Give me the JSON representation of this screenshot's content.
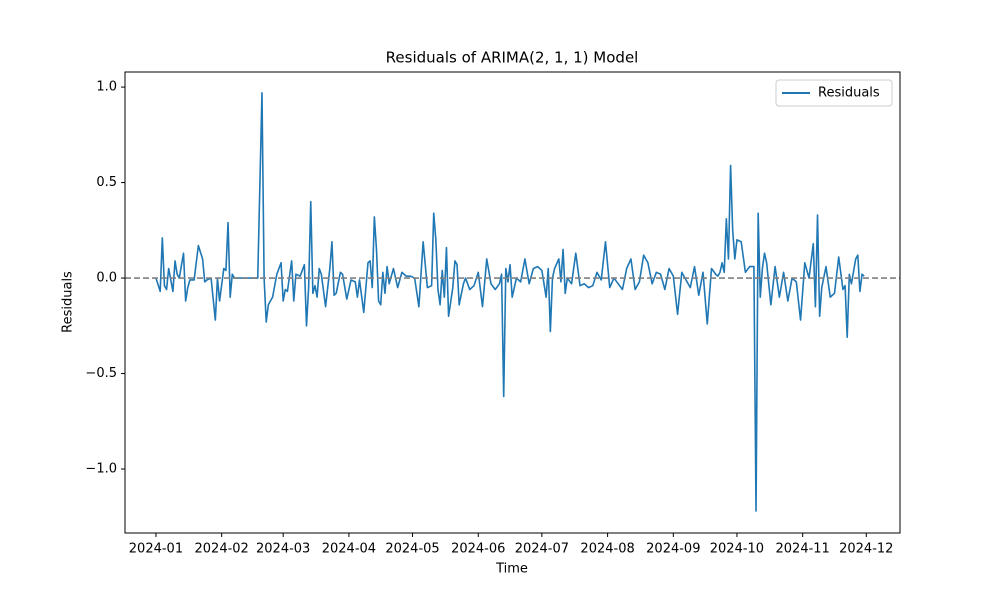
{
  "chart_data": {
    "type": "line",
    "title": "Residuals of ARIMA(2, 1, 1) Model",
    "xlabel": "Time",
    "ylabel": "Residuals",
    "x": [
      0,
      2,
      3,
      4,
      5,
      6,
      8,
      9,
      10,
      11,
      13,
      14,
      15,
      16,
      18,
      20,
      22,
      23,
      24,
      26,
      28,
      29,
      30,
      32,
      33,
      34,
      35,
      36,
      37,
      38,
      40,
      44,
      48,
      50,
      51,
      52,
      53,
      55,
      57,
      59,
      60,
      61,
      62,
      64,
      65,
      66,
      68,
      70,
      71,
      72,
      73,
      74,
      75,
      76,
      77,
      78,
      80,
      82,
      83,
      84,
      85,
      87,
      88,
      90,
      92,
      94,
      95,
      96,
      98,
      100,
      101,
      102,
      103,
      104,
      105,
      106,
      107,
      108,
      109,
      110,
      112,
      114,
      116,
      118,
      120,
      122,
      124,
      126,
      128,
      130,
      131,
      132,
      133,
      134,
      135,
      136,
      137,
      138,
      140,
      141,
      142,
      143,
      145,
      146,
      148,
      150,
      152,
      154,
      156,
      158,
      160,
      162,
      163,
      164,
      165,
      166,
      167,
      168,
      170,
      172,
      174,
      176,
      178,
      180,
      182,
      184,
      185,
      186,
      187,
      188,
      190,
      191,
      192,
      193,
      194,
      196,
      198,
      200,
      202,
      204,
      206,
      208,
      210,
      212,
      214,
      216,
      218,
      220,
      222,
      224,
      226,
      228,
      230,
      232,
      234,
      236,
      238,
      240,
      242,
      244,
      246,
      248,
      250,
      252,
      254,
      256,
      258,
      260,
      262,
      264,
      265,
      266,
      267,
      268,
      269,
      270,
      271,
      272,
      273,
      274,
      276,
      278,
      280,
      281,
      282,
      283,
      284,
      285,
      286,
      287,
      288,
      290,
      292,
      294,
      296,
      298,
      300,
      302,
      304,
      306,
      308,
      310,
      311,
      312,
      313,
      314,
      316,
      318,
      320,
      322,
      324,
      325,
      326,
      327,
      328,
      330,
      331,
      332,
      333,
      334
    ],
    "series": [
      {
        "name": "Residuals",
        "color": "#1f77b4",
        "values": [
          0.0,
          -0.07,
          0.21,
          -0.04,
          -0.06,
          0.05,
          -0.07,
          0.09,
          0.02,
          0.0,
          0.13,
          -0.12,
          -0.05,
          -0.01,
          -0.01,
          0.17,
          0.1,
          -0.02,
          -0.01,
          0.0,
          -0.22,
          0.0,
          -0.12,
          0.05,
          0.04,
          0.29,
          -0.1,
          0.02,
          0.0,
          0.0,
          0.0,
          0.0,
          0.0,
          0.97,
          0.0,
          -0.23,
          -0.14,
          -0.1,
          0.02,
          0.08,
          -0.12,
          -0.06,
          -0.07,
          0.09,
          -0.12,
          0.02,
          0.01,
          0.07,
          -0.25,
          -0.05,
          0.4,
          -0.08,
          -0.04,
          -0.1,
          0.05,
          0.02,
          -0.15,
          0.05,
          0.19,
          -0.09,
          -0.08,
          0.03,
          0.02,
          -0.11,
          -0.01,
          -0.02,
          -0.1,
          -0.01,
          -0.18,
          0.08,
          0.09,
          -0.05,
          0.32,
          0.15,
          -0.12,
          -0.14,
          0.03,
          -0.08,
          0.06,
          -0.03,
          0.05,
          -0.05,
          0.03,
          0.01,
          0.01,
          0.0,
          -0.15,
          0.19,
          -0.05,
          -0.04,
          0.34,
          0.2,
          -0.06,
          -0.14,
          0.04,
          -0.1,
          0.16,
          -0.2,
          -0.05,
          0.09,
          0.07,
          -0.14,
          -0.03,
          0.0,
          -0.06,
          -0.04,
          0.03,
          -0.15,
          0.1,
          -0.03,
          -0.06,
          -0.03,
          0.02,
          -0.62,
          0.05,
          -0.02,
          0.07,
          -0.1,
          0.0,
          -0.02,
          0.1,
          -0.03,
          0.05,
          0.06,
          0.04,
          -0.1,
          0.05,
          -0.28,
          0.0,
          0.05,
          0.1,
          -0.02,
          0.15,
          -0.08,
          0.0,
          -0.03,
          0.13,
          -0.04,
          -0.03,
          -0.05,
          -0.04,
          0.03,
          -0.01,
          0.19,
          -0.05,
          0.0,
          -0.03,
          -0.06,
          0.05,
          0.1,
          -0.06,
          -0.02,
          0.12,
          0.08,
          -0.03,
          0.03,
          0.02,
          -0.06,
          0.05,
          0.01,
          -0.19,
          0.03,
          -0.01,
          -0.05,
          0.06,
          -0.09,
          0.03,
          -0.24,
          0.05,
          0.02,
          0.01,
          0.03,
          0.08,
          0.03,
          0.31,
          0.1,
          0.59,
          0.25,
          0.1,
          0.2,
          0.19,
          0.03,
          0.06,
          0.06,
          0.06,
          -1.22,
          0.34,
          -0.1,
          0.05,
          0.13,
          0.08,
          -0.14,
          0.06,
          -0.1,
          0.03,
          -0.12,
          0.0,
          -0.02,
          -0.22,
          0.08,
          0.0,
          0.18,
          -0.15,
          0.33,
          -0.2,
          -0.05,
          0.06,
          -0.1,
          -0.08,
          0.11,
          -0.06,
          -0.04,
          -0.31,
          0.02,
          -0.03,
          0.1,
          0.12,
          -0.07,
          0.02,
          0.01
        ]
      }
    ],
    "hline": 0,
    "xlim": [
      -14.6,
      350.9
    ],
    "xticks": [
      {
        "value": 0,
        "label": "2024-01"
      },
      {
        "value": 31,
        "label": "2024-02"
      },
      {
        "value": 60,
        "label": "2024-03"
      },
      {
        "value": 91,
        "label": "2024-04"
      },
      {
        "value": 121,
        "label": "2024-05"
      },
      {
        "value": 152,
        "label": "2024-06"
      },
      {
        "value": 182,
        "label": "2024-07"
      },
      {
        "value": 213,
        "label": "2024-08"
      },
      {
        "value": 244,
        "label": "2024-09"
      },
      {
        "value": 274,
        "label": "2024-10"
      },
      {
        "value": 305,
        "label": "2024-11"
      },
      {
        "value": 335,
        "label": "2024-12"
      }
    ],
    "ylim": [
      -1.335,
      1.079
    ],
    "yticks": [
      {
        "value": -1.0,
        "label": "−1.0"
      },
      {
        "value": -0.5,
        "label": "−0.5"
      },
      {
        "value": 0.0,
        "label": "0.0"
      },
      {
        "value": 0.5,
        "label": "0.5"
      },
      {
        "value": 1.0,
        "label": "1.0"
      }
    ],
    "legend": "upper right"
  }
}
